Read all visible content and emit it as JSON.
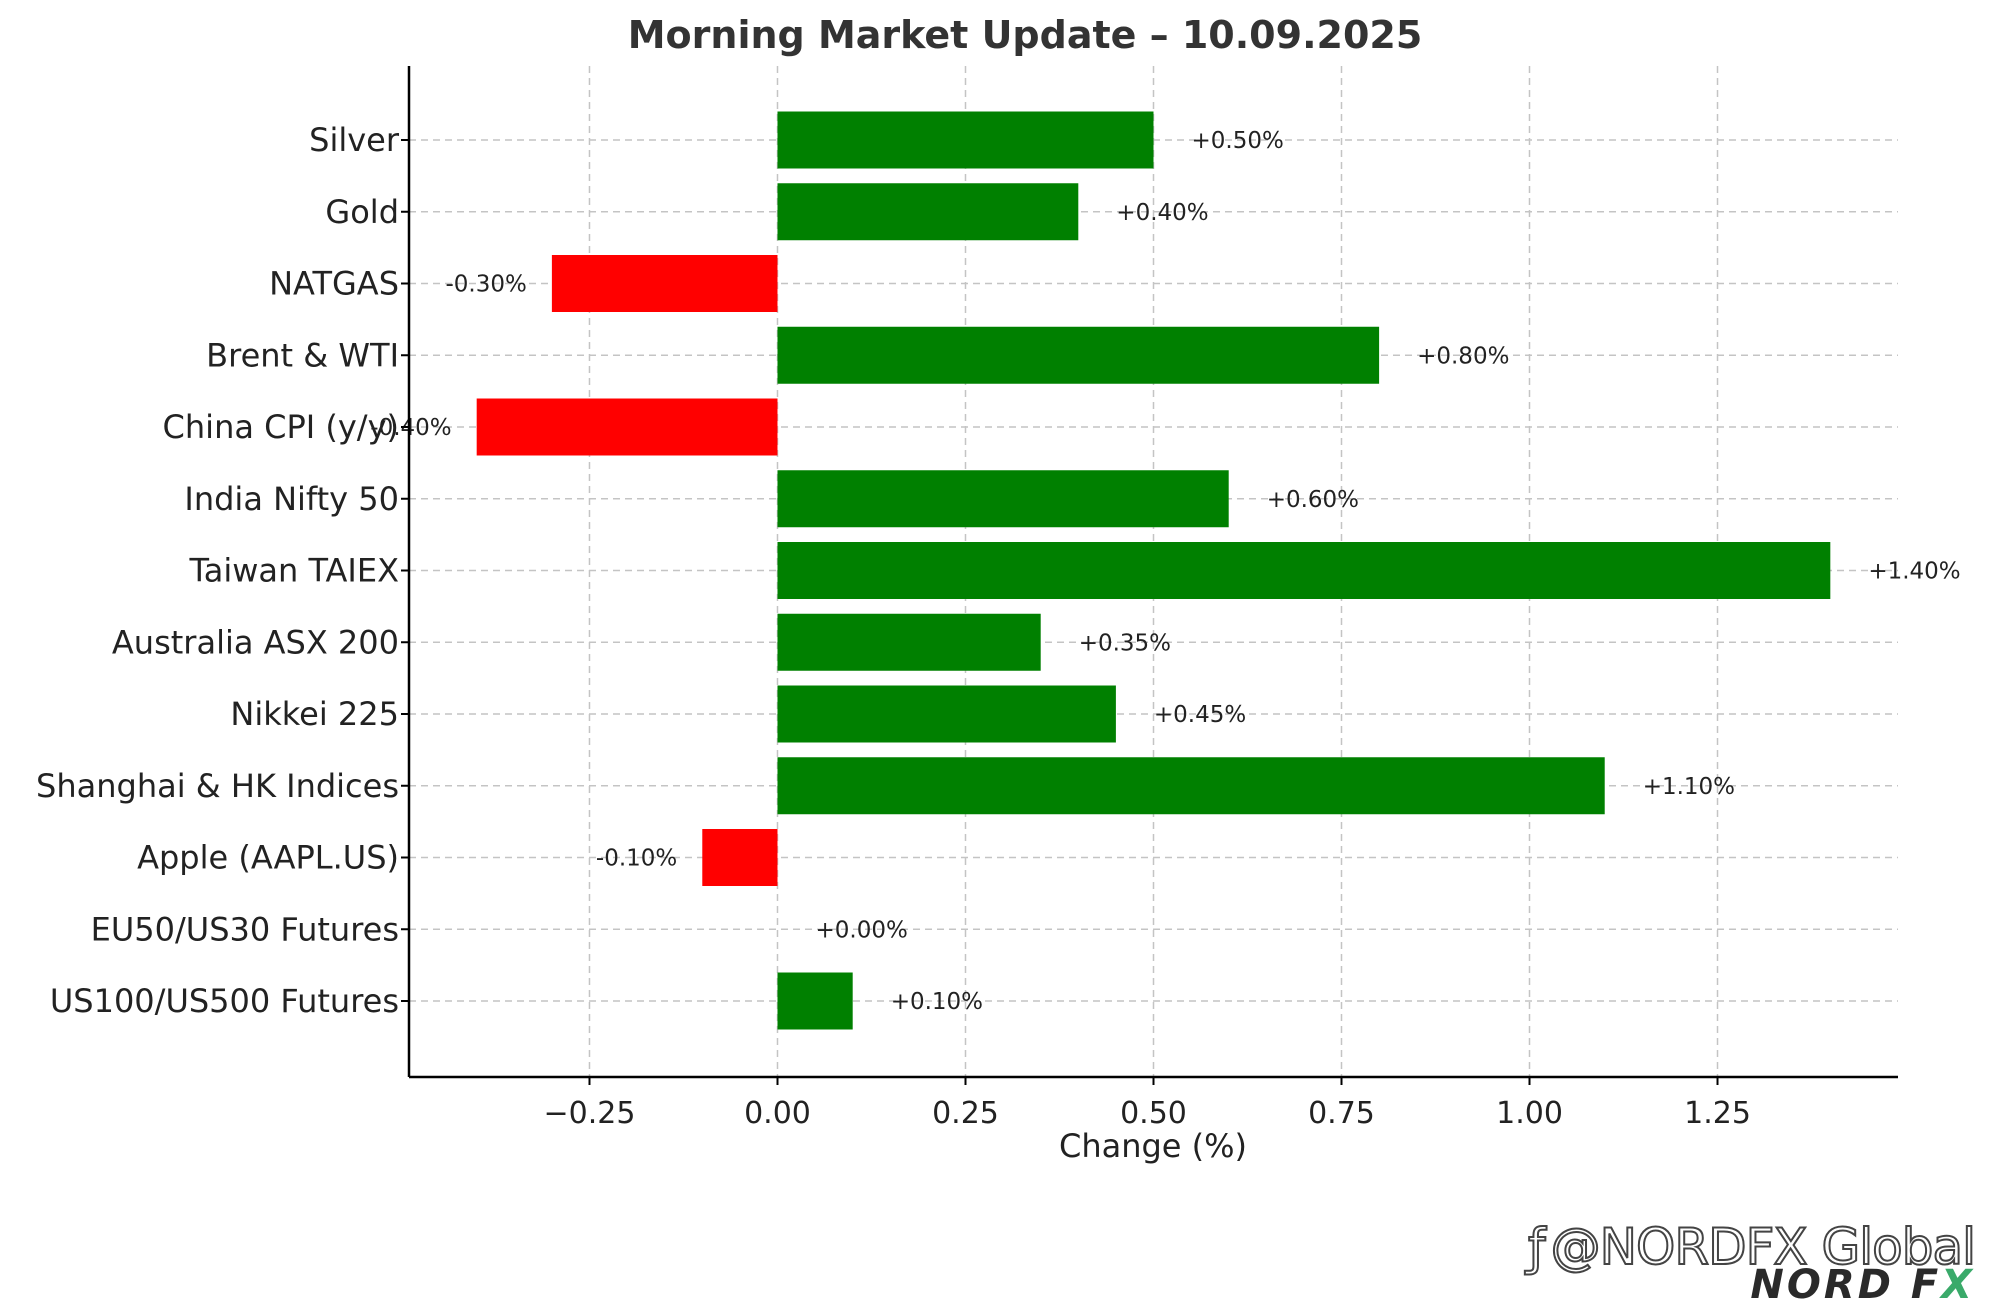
{
  "chart_data": {
    "type": "bar",
    "orientation": "horizontal",
    "title": "Morning Market Update – 10.09.2025",
    "xlabel": "Change (%)",
    "ylabel": "",
    "xlim": [
      -0.49,
      1.49
    ],
    "xticks": [
      -0.25,
      0.0,
      0.25,
      0.5,
      0.75,
      1.0,
      1.25
    ],
    "xtick_labels": [
      "−0.25",
      "0.00",
      "0.25",
      "0.50",
      "0.75",
      "1.00",
      "1.25"
    ],
    "grid": true,
    "categories": [
      "Silver",
      "Gold",
      "NATGAS",
      "Brent & WTI",
      "China CPI (y/y)",
      "India Nifty 50",
      "Taiwan TAIEX",
      "Australia ASX 200",
      "Nikkei 225",
      "Shanghai & HK Indices",
      "Apple (AAPL.US)",
      "EU50/US30 Futures",
      "US100/US500 Futures"
    ],
    "values": [
      0.5,
      0.4,
      -0.3,
      0.8,
      -0.4,
      0.6,
      1.4,
      0.35,
      0.45,
      1.1,
      -0.1,
      0.0,
      0.1
    ],
    "data_labels": [
      "+0.50%",
      "+0.40%",
      "-0.30%",
      "+0.80%",
      "-0.40%",
      "+0.60%",
      "+1.40%",
      "+0.35%",
      "+0.45%",
      "+1.10%",
      "-0.10%",
      "+0.00%",
      "+0.10%"
    ],
    "colors": {
      "positive": "#008000",
      "negative": "#ff0000"
    }
  },
  "watermark": {
    "text": "@NORDFX Global",
    "icon": "social-logo-icon"
  },
  "brand": {
    "text": "NORD F",
    "accent_letter": "X"
  }
}
